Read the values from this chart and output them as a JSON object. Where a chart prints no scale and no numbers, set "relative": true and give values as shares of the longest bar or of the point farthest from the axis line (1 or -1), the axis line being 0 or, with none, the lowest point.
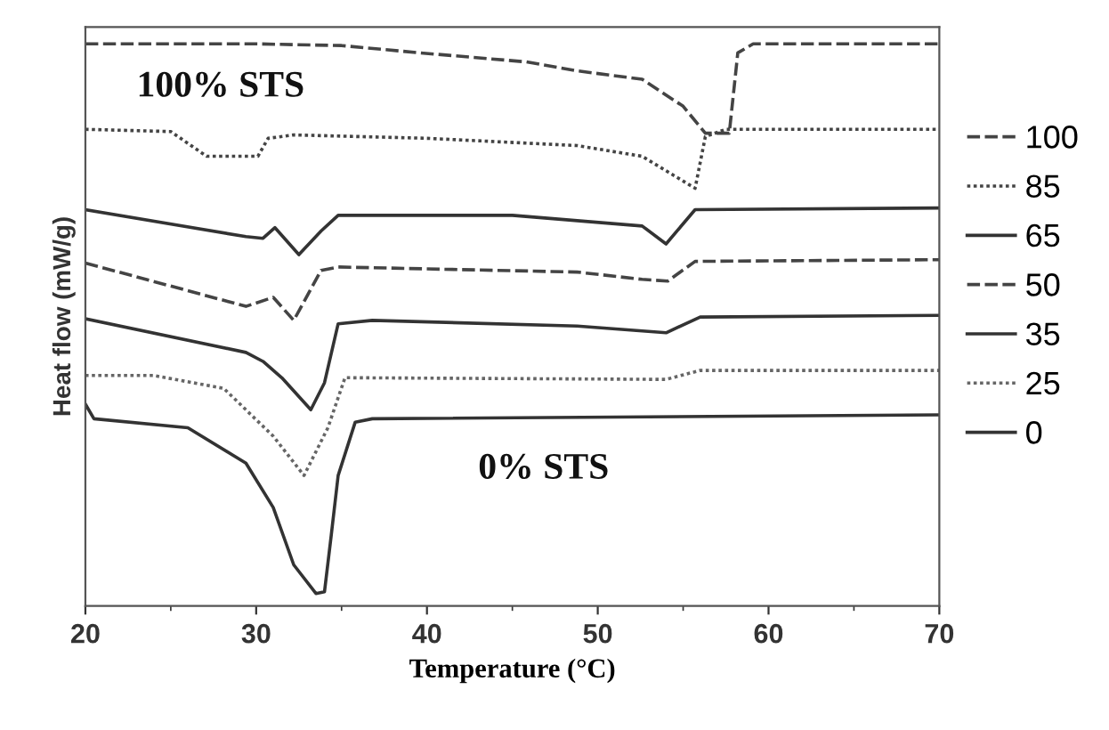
{
  "chart_data": {
    "type": "line",
    "relative": true,
    "xlabel": "Temperature (°C)",
    "ylabel": "Heat flow (mW/g)",
    "xlim": [
      20,
      70
    ],
    "xticks": [
      20,
      30,
      40,
      50,
      60,
      70
    ],
    "grid": false,
    "legend": "right",
    "marker": "none",
    "annotations": [
      "100% STS",
      "0% STS"
    ],
    "series": [
      {
        "name": "100",
        "color": "#444444",
        "line_style": "dashed",
        "x": [
          20,
          30,
          35,
          39.6,
          45.8,
          48.8,
          52.6,
          55,
          56.3,
          57.7,
          58.2,
          59.1,
          70
        ],
        "values": [
          1.0,
          1.0,
          0.997,
          0.984,
          0.968,
          0.952,
          0.937,
          0.889,
          0.841,
          0.841,
          0.984,
          1.0,
          1.0
        ]
      },
      {
        "name": "85",
        "color": "#444444",
        "line_style": "dotted",
        "x": [
          20,
          25,
          27.1,
          30.1,
          30.7,
          32.2,
          40,
          48.8,
          52.6,
          55.7,
          56.3,
          57.5,
          70
        ],
        "values": [
          0.848,
          0.844,
          0.8,
          0.8,
          0.832,
          0.838,
          0.832,
          0.819,
          0.8,
          0.743,
          0.835,
          0.848,
          0.848
        ]
      },
      {
        "name": "65",
        "color": "#333333",
        "line_style": "solid",
        "x": [
          20,
          29.4,
          30.4,
          31.1,
          32.5,
          33.8,
          34.8,
          45,
          52.6,
          54.0,
          55.7,
          70
        ],
        "values": [
          0.705,
          0.657,
          0.654,
          0.673,
          0.625,
          0.667,
          0.695,
          0.695,
          0.676,
          0.644,
          0.705,
          0.708
        ]
      },
      {
        "name": "50",
        "color": "#444444",
        "line_style": "dashed",
        "x": [
          20,
          29.4,
          31,
          32.2,
          33.8,
          34.8,
          48.8,
          52.6,
          54.1,
          55.7,
          70
        ],
        "values": [
          0.61,
          0.533,
          0.549,
          0.508,
          0.597,
          0.603,
          0.594,
          0.581,
          0.578,
          0.613,
          0.616
        ]
      },
      {
        "name": "35",
        "color": "#333333",
        "line_style": "solid",
        "x": [
          20,
          29.4,
          30.4,
          31.5,
          33.2,
          34.0,
          34.8,
          36.8,
          48.8,
          54,
          56,
          70
        ],
        "values": [
          0.511,
          0.451,
          0.435,
          0.406,
          0.349,
          0.397,
          0.502,
          0.508,
          0.498,
          0.486,
          0.514,
          0.517
        ]
      },
      {
        "name": "25",
        "color": "#666666",
        "line_style": "dotted",
        "x": [
          20,
          24,
          28.1,
          31,
          32.8,
          34.2,
          35.2,
          54,
          56,
          70
        ],
        "values": [
          0.41,
          0.41,
          0.387,
          0.302,
          0.232,
          0.317,
          0.406,
          0.403,
          0.419,
          0.419
        ]
      },
      {
        "name": "0",
        "color": "#333333",
        "line_style": "solid",
        "x": [
          20,
          20.5,
          26,
          29.4,
          31,
          32.2,
          33.5,
          34.0,
          34.4,
          34.8,
          35.8,
          36.8,
          70
        ],
        "values": [
          0.359,
          0.333,
          0.317,
          0.254,
          0.175,
          0.073,
          0.022,
          0.025,
          0.127,
          0.232,
          0.327,
          0.333,
          0.34
        ]
      }
    ]
  }
}
